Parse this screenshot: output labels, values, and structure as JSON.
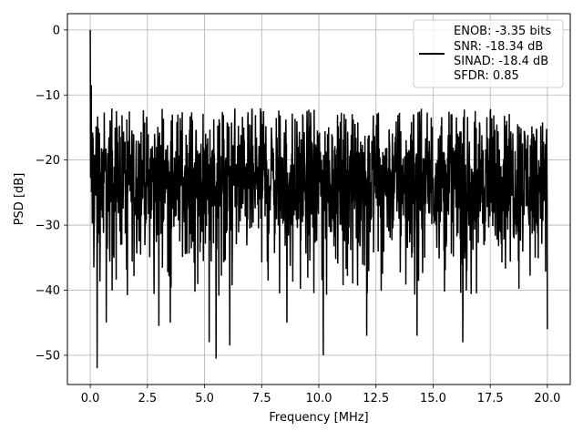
{
  "chart_data": {
    "type": "line",
    "title": "",
    "xlabel": "Frequency [MHz]",
    "ylabel": "PSD [dB]",
    "xlim": [
      -1.0,
      21.0
    ],
    "ylim": [
      -54.5,
      2.5
    ],
    "x_ticks": [
      0.0,
      2.5,
      5.0,
      7.5,
      10.0,
      12.5,
      15.0,
      17.5,
      20.0
    ],
    "x_tick_labels": [
      "0.0",
      "2.5",
      "5.0",
      "7.5",
      "10.0",
      "12.5",
      "15.0",
      "17.5",
      "20.0"
    ],
    "y_ticks": [
      0,
      -10,
      -20,
      -30,
      -40,
      -50
    ],
    "y_tick_labels": [
      "0",
      "−10",
      "−20",
      "−30",
      "−40",
      "−50"
    ],
    "grid": true,
    "legend": {
      "placement": "top-right",
      "entries": [
        "ENOB: -3.35 bits",
        "SNR: -18.34 dB",
        "SINAD: -18.4 dB",
        "SFDR: 0.85"
      ]
    },
    "series": [
      {
        "color": "#000000",
        "x_range": [
          0.0,
          20.0
        ],
        "noise_floor": {
          "mean_db": -23,
          "upper_envelope_db": -12,
          "lower_envelope_db": -35
        },
        "peaks": [
          {
            "x": 0.0,
            "y": 0.0
          },
          {
            "x": 0.05,
            "y": -8.5
          },
          {
            "x": 0.3,
            "y": -52.0
          },
          {
            "x": 0.7,
            "y": -45.0
          },
          {
            "x": 3.0,
            "y": -45.5
          },
          {
            "x": 3.5,
            "y": -45.0
          },
          {
            "x": 5.2,
            "y": -48.0
          },
          {
            "x": 5.5,
            "y": -50.5
          },
          {
            "x": 6.1,
            "y": -48.5
          },
          {
            "x": 8.6,
            "y": -45.0
          },
          {
            "x": 10.2,
            "y": -50.0
          },
          {
            "x": 12.1,
            "y": -47.0
          },
          {
            "x": 14.3,
            "y": -47.0
          },
          {
            "x": 16.3,
            "y": -48.0
          },
          {
            "x": 20.0,
            "y": -46.0
          }
        ]
      }
    ]
  }
}
